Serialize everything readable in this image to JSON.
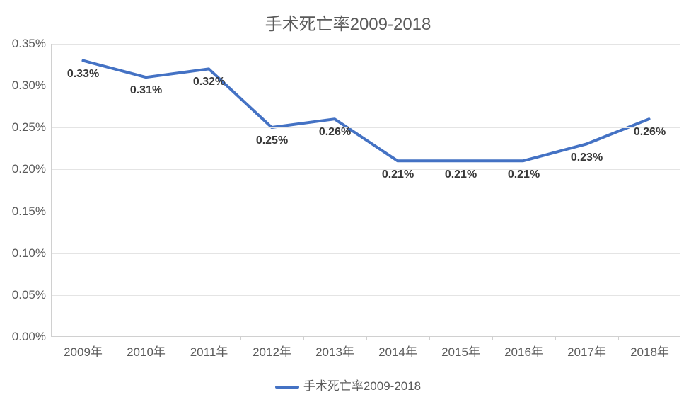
{
  "chart": {
    "type": "line",
    "title": "手术死亡率2009-2018",
    "title_fontsize": 24,
    "title_color": "#5a5a5a",
    "background_color": "#ffffff",
    "plot_border_color": "#d0d0d0",
    "grid_color": "#e4e4e4",
    "series_color": "#4472c4",
    "line_width": 4,
    "marker_radius": 0,
    "label_fontsize": 16,
    "label_color": "#383838",
    "axis_label_fontsize": 17,
    "axis_label_color": "#5a5a5a",
    "ylim": [
      0,
      0.0035
    ],
    "ytick_step": 0.0005,
    "y_ticks": [
      "0.00%",
      "0.05%",
      "0.10%",
      "0.15%",
      "0.20%",
      "0.25%",
      "0.30%",
      "0.35%"
    ],
    "categories": [
      "2009年",
      "2010年",
      "2011年",
      "2012年",
      "2013年",
      "2014年",
      "2015年",
      "2016年",
      "2017年",
      "2018年"
    ],
    "values": [
      0.0033,
      0.0031,
      0.0032,
      0.0025,
      0.0026,
      0.0021,
      0.0021,
      0.0021,
      0.0023,
      0.0026
    ],
    "value_labels": [
      "0.33%",
      "0.31%",
      "0.32%",
      "0.25%",
      "0.26%",
      "0.21%",
      "0.21%",
      "0.21%",
      "0.23%",
      "0.26%"
    ],
    "legend_label": "手术死亡率2009-2018"
  }
}
